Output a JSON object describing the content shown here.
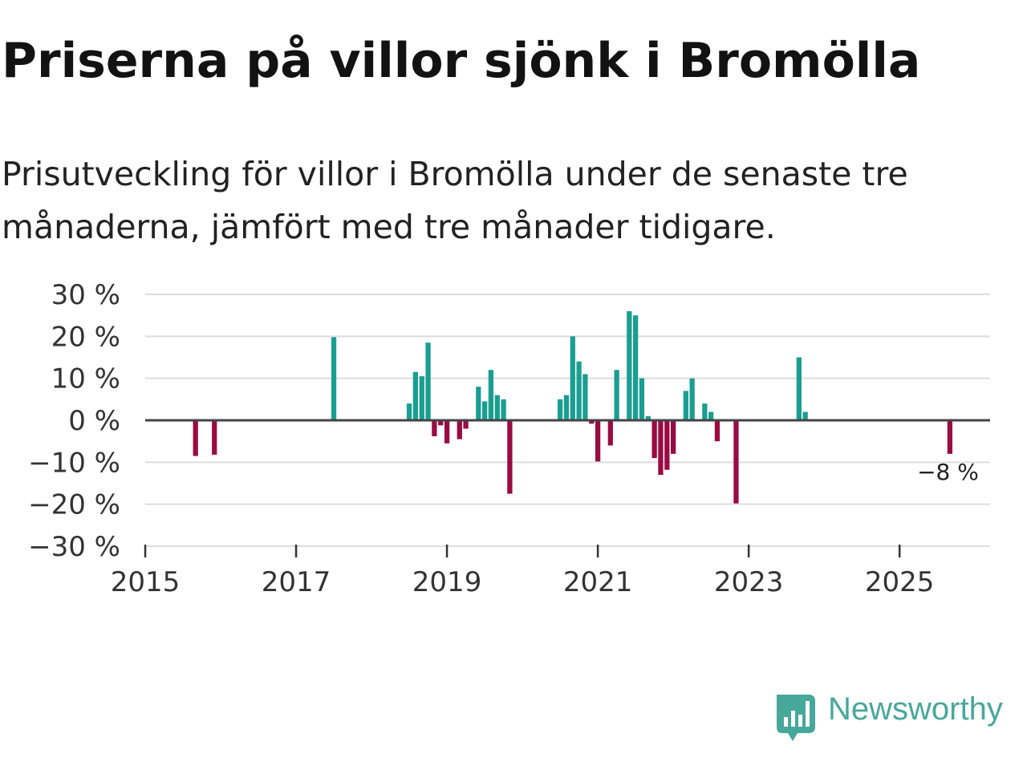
{
  "header": {
    "title": "Priserna på villor sjönk i Bromölla",
    "subtitle": "Prisutveckling för villor i Bromölla under de senaste tre månaderna, jämfört med tre månader tidigare."
  },
  "brand": {
    "name": "Newsworthy"
  },
  "colors": {
    "positive": "#1A9E91",
    "negative": "#9A0B42",
    "zero_line": "#444444",
    "grid": "#dddddd",
    "brand": "#48A79B"
  },
  "chart_data": {
    "type": "bar",
    "title": "",
    "xlabel": "",
    "ylabel": "",
    "xlim": [
      2015.0,
      2026.2
    ],
    "ylim": [
      -30,
      30
    ],
    "y_ticks": [
      30,
      20,
      10,
      0,
      -10,
      -20,
      -30
    ],
    "y_tick_labels": [
      "30 %",
      "20 %",
      "10 %",
      "0 %",
      "−10 %",
      "−20 %",
      "−30 %"
    ],
    "x_ticks": [
      2015,
      2017,
      2019,
      2021,
      2023,
      2025
    ],
    "x_tick_labels": [
      "2015",
      "2017",
      "2019",
      "2021",
      "2023",
      "2025"
    ],
    "grid": true,
    "series": [
      {
        "name": "Prisutveckling",
        "points": [
          {
            "x": 2015.667,
            "value": -8.5
          },
          {
            "x": 2015.917,
            "value": -8.2
          },
          {
            "x": 2017.5,
            "value": 19.8
          },
          {
            "x": 2018.5,
            "value": 4.0
          },
          {
            "x": 2018.583,
            "value": 11.5
          },
          {
            "x": 2018.667,
            "value": 10.5
          },
          {
            "x": 2018.75,
            "value": 18.5
          },
          {
            "x": 2018.833,
            "value": -3.8
          },
          {
            "x": 2018.917,
            "value": -1.2
          },
          {
            "x": 2019.0,
            "value": -5.5
          },
          {
            "x": 2019.167,
            "value": -4.5
          },
          {
            "x": 2019.25,
            "value": -2.0
          },
          {
            "x": 2019.417,
            "value": 8.0
          },
          {
            "x": 2019.5,
            "value": 4.5
          },
          {
            "x": 2019.583,
            "value": 12.0
          },
          {
            "x": 2019.667,
            "value": 6.0
          },
          {
            "x": 2019.75,
            "value": 5.0
          },
          {
            "x": 2019.833,
            "value": -17.5
          },
          {
            "x": 2020.5,
            "value": 5.0
          },
          {
            "x": 2020.583,
            "value": 6.0
          },
          {
            "x": 2020.667,
            "value": 20.0
          },
          {
            "x": 2020.75,
            "value": 14.0
          },
          {
            "x": 2020.833,
            "value": 11.0
          },
          {
            "x": 2020.917,
            "value": -0.8
          },
          {
            "x": 2021.0,
            "value": -9.8
          },
          {
            "x": 2021.167,
            "value": -6.0
          },
          {
            "x": 2021.25,
            "value": 12.0
          },
          {
            "x": 2021.417,
            "value": 26.0
          },
          {
            "x": 2021.5,
            "value": 25.0
          },
          {
            "x": 2021.583,
            "value": 10.0
          },
          {
            "x": 2021.667,
            "value": 1.0
          },
          {
            "x": 2021.75,
            "value": -9.0
          },
          {
            "x": 2021.833,
            "value": -13.0
          },
          {
            "x": 2021.917,
            "value": -11.8
          },
          {
            "x": 2022.0,
            "value": -8.0
          },
          {
            "x": 2022.167,
            "value": 7.0
          },
          {
            "x": 2022.25,
            "value": 10.0
          },
          {
            "x": 2022.417,
            "value": 4.0
          },
          {
            "x": 2022.5,
            "value": 2.0
          },
          {
            "x": 2022.583,
            "value": -5.0
          },
          {
            "x": 2022.833,
            "value": -19.8
          },
          {
            "x": 2023.667,
            "value": 15.0
          },
          {
            "x": 2023.75,
            "value": 2.0
          },
          {
            "x": 2025.667,
            "value": -8.0
          }
        ]
      }
    ],
    "annotation": {
      "text": "−8 %",
      "x": 2025.667,
      "value": -8.0
    }
  }
}
